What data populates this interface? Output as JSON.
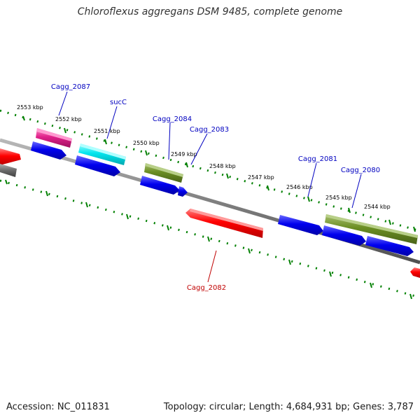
{
  "title": "Chloroflexus aggregans DSM 9485, complete genome",
  "footer": {
    "accession": "Accession: NC_011831",
    "topology": "Topology: circular; Length: 4,684,931 bp; Genes: 3,787"
  },
  "colors": {
    "backbone": "#808080",
    "scale_ticks": "#008000",
    "gene_label_forward": "#0000c0",
    "gene_label_reverse": "#c00000",
    "gene_blue": "#0000ee",
    "gene_red": "#ff0000",
    "gene_olive": "#6b8e23",
    "gene_cyan": "#00e5ee",
    "gene_magenta": "#e0208a",
    "gene_gray": "#707070"
  },
  "scale_labels": [
    {
      "id": "kbp-2553",
      "text": "2553 kbp"
    },
    {
      "id": "kbp-2552",
      "text": "2552 kbp"
    },
    {
      "id": "kbp-2551",
      "text": "2551 kbp"
    },
    {
      "id": "kbp-2550",
      "text": "2550 kbp"
    },
    {
      "id": "kbp-2549",
      "text": "2549 kbp"
    },
    {
      "id": "kbp-2548",
      "text": "2548 kbp"
    },
    {
      "id": "kbp-2547",
      "text": "2547 kbp"
    },
    {
      "id": "kbp-2546",
      "text": "2546 kbp"
    },
    {
      "id": "kbp-2545",
      "text": "2545 kbp"
    },
    {
      "id": "kbp-2544",
      "text": "2544 kbp"
    }
  ],
  "gene_labels": [
    {
      "id": "cagg-2087",
      "text": "Cagg_2087",
      "strand": "forward"
    },
    {
      "id": "succ",
      "text": "sucC",
      "strand": "forward"
    },
    {
      "id": "cagg-2084",
      "text": "Cagg_2084",
      "strand": "forward"
    },
    {
      "id": "cagg-2083",
      "text": "Cagg_2083",
      "strand": "forward"
    },
    {
      "id": "cagg-2081",
      "text": "Cagg_2081",
      "strand": "forward"
    },
    {
      "id": "cagg-2080",
      "text": "Cagg_2080",
      "strand": "forward"
    },
    {
      "id": "cagg-2082",
      "text": "Cagg_2082",
      "strand": "reverse"
    }
  ]
}
